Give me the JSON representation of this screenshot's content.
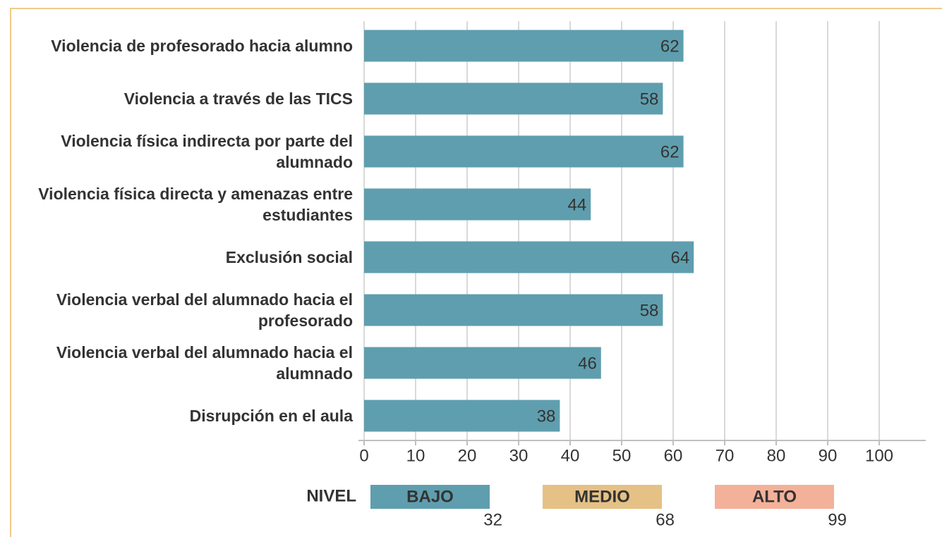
{
  "chart_data": {
    "type": "barh",
    "categories": [
      "Violencia de profesorado hacia alumno",
      "Violencia a través de las TICS",
      "Violencia física indirecta por parte del alumnado",
      "Violencia física directa y amenazas entre estudiantes",
      "Exclusión social",
      "Violencia verbal del alumnado hacia el profesorado",
      "Violencia verbal del alumnado hacia el alumnado",
      "Disrupción en el aula"
    ],
    "values": [
      62,
      58,
      62,
      44,
      64,
      58,
      46,
      38
    ],
    "color": "#5f9eae",
    "xlim": [
      0,
      100
    ],
    "xticks": [
      0,
      10,
      20,
      30,
      40,
      50,
      60,
      70,
      80,
      90,
      100
    ],
    "grid": true,
    "legend_title": "NIVEL",
    "levels": [
      {
        "name": "BAJO",
        "color": "#5f9eae",
        "value": 32
      },
      {
        "name": "MEDIO",
        "color": "#e5c185",
        "value": 68
      },
      {
        "name": "ALTO",
        "color": "#f4b19a",
        "value": 99
      }
    ]
  }
}
